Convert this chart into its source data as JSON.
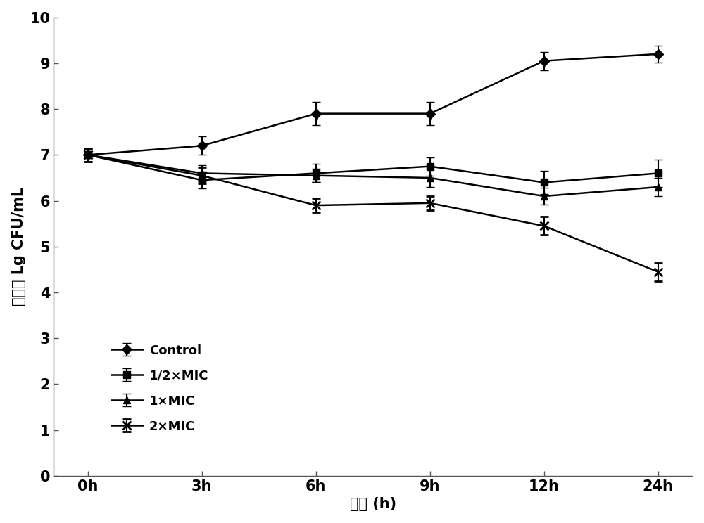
{
  "x_positions": [
    0,
    1,
    2,
    3,
    4,
    5
  ],
  "x_labels": [
    "0h",
    "3h",
    "6h",
    "9h",
    "12h",
    "24h"
  ],
  "series": [
    {
      "label": "Control",
      "y": [
        7.0,
        7.2,
        7.9,
        7.9,
        9.05,
        9.2
      ],
      "yerr": [
        0.15,
        0.2,
        0.25,
        0.25,
        0.2,
        0.18
      ],
      "marker": "D",
      "color": "#000000",
      "markersize": 7,
      "markerfacecolor": "#000000",
      "markeredgewidth": 1.0
    },
    {
      "label": "1/2×MIC",
      "y": [
        7.0,
        6.45,
        6.6,
        6.75,
        6.4,
        6.6
      ],
      "yerr": [
        0.15,
        0.18,
        0.2,
        0.2,
        0.25,
        0.3
      ],
      "marker": "s",
      "color": "#000000",
      "markersize": 7,
      "markerfacecolor": "#000000",
      "markeredgewidth": 1.0
    },
    {
      "label": "1×MIC",
      "y": [
        7.0,
        6.6,
        6.55,
        6.5,
        6.1,
        6.3
      ],
      "yerr": [
        0.15,
        0.18,
        0.15,
        0.2,
        0.18,
        0.2
      ],
      "marker": "^",
      "color": "#000000",
      "markersize": 7,
      "markerfacecolor": "#000000",
      "markeredgewidth": 1.0
    },
    {
      "label": "2×MIC",
      "y": [
        7.0,
        6.55,
        5.9,
        5.95,
        5.45,
        4.45
      ],
      "yerr": [
        0.15,
        0.18,
        0.15,
        0.15,
        0.2,
        0.2
      ],
      "marker": "x",
      "color": "#000000",
      "markersize": 8,
      "markerfacecolor": "#000000",
      "markeredgewidth": 2.0
    }
  ],
  "xlabel": "时间 (h)",
  "ylabel": "菌落数 Lg CFU/mL",
  "ylim": [
    0,
    10
  ],
  "yticks": [
    0,
    1,
    2,
    3,
    4,
    5,
    6,
    7,
    8,
    9,
    10
  ],
  "linewidth": 1.8,
  "background_color": "#ffffff",
  "label_fontsize": 15,
  "tick_fontsize": 15,
  "legend_fontsize": 13
}
